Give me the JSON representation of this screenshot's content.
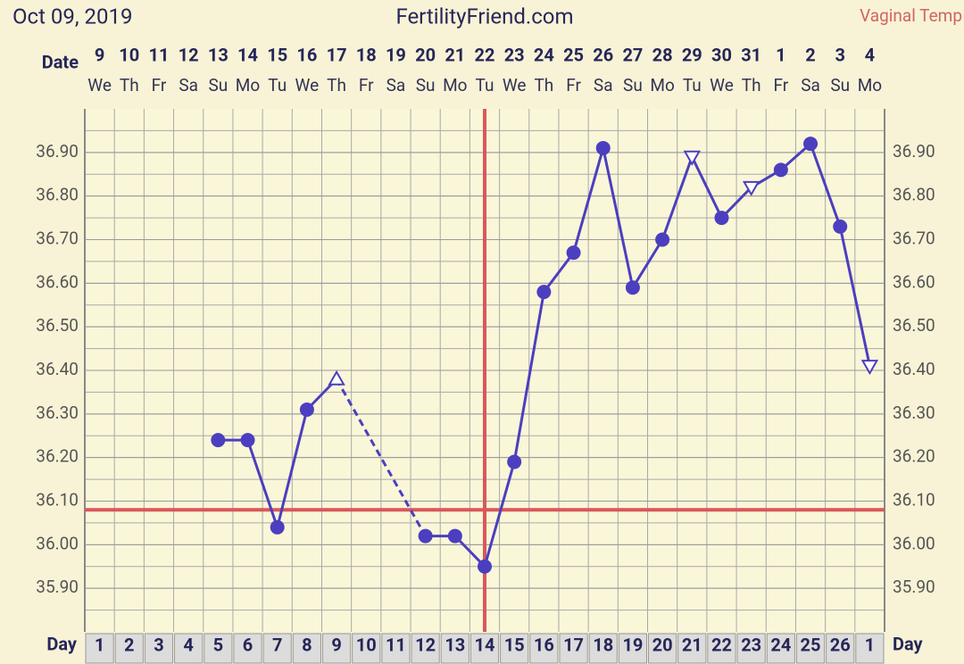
{
  "chart_data": {
    "type": "line",
    "title": "FertilityFriend.com",
    "subtitle": "Oct 09, 2019",
    "temp_label": "Vaginal Temp",
    "date_label": "Date",
    "day_label": "Day",
    "categories": [
      1,
      2,
      3,
      4,
      5,
      6,
      7,
      8,
      9,
      10,
      11,
      12,
      13,
      14,
      15,
      16,
      17,
      18,
      19,
      20,
      21,
      22,
      23,
      24,
      25,
      26,
      1
    ],
    "dates": [
      9,
      10,
      11,
      12,
      13,
      14,
      15,
      16,
      17,
      18,
      19,
      20,
      21,
      22,
      23,
      24,
      25,
      26,
      27,
      28,
      29,
      30,
      31,
      1,
      2,
      3,
      4
    ],
    "weekdays": [
      "We",
      "Th",
      "Fr",
      "Sa",
      "Su",
      "Mo",
      "Tu",
      "We",
      "Th",
      "Fr",
      "Sa",
      "Su",
      "Mo",
      "Tu",
      "We",
      "Th",
      "Fr",
      "Sa",
      "Su",
      "Mo",
      "Tu",
      "We",
      "Th",
      "Fr",
      "Sa",
      "Su",
      "Mo"
    ],
    "series": [
      {
        "name": "Temperature",
        "color": "#4b3fbf",
        "values": [
          null,
          null,
          null,
          null,
          36.24,
          36.24,
          36.04,
          36.31,
          36.38,
          null,
          null,
          36.02,
          36.02,
          35.95,
          36.19,
          36.58,
          36.67,
          36.91,
          36.59,
          36.7,
          36.89,
          36.75,
          36.82,
          36.86,
          36.92,
          36.73,
          36.41
        ],
        "markers": [
          "circle",
          "circle",
          "circle",
          "circle",
          "circle",
          "circle",
          "circle",
          "circle",
          "triangle-up",
          "circle",
          "circle",
          "circle",
          "circle",
          "circle",
          "circle",
          "circle",
          "circle",
          "circle",
          "circle",
          "circle",
          "triangle-down",
          "circle",
          "triangle-down",
          "circle",
          "circle",
          "circle",
          "triangle-down"
        ]
      }
    ],
    "coverline": 36.08,
    "ovulation_index": 13,
    "marker_line_color": "#d9575b",
    "ylim": [
      35.8,
      37.0
    ],
    "yticks": [
      {
        "value": 35.9,
        "label": "35.90"
      },
      {
        "value": 36.0,
        "label": "36.00"
      },
      {
        "value": 36.1,
        "label": "36.10"
      },
      {
        "value": 36.2,
        "label": "36.20"
      },
      {
        "value": 36.3,
        "label": "36.30"
      },
      {
        "value": 36.4,
        "label": "36.40"
      },
      {
        "value": 36.5,
        "label": "36.50"
      },
      {
        "value": 36.6,
        "label": "36.60"
      },
      {
        "value": 36.7,
        "label": "36.70"
      },
      {
        "value": 36.8,
        "label": "36.80"
      },
      {
        "value": 36.9,
        "label": "36.90"
      }
    ],
    "grid": true
  }
}
